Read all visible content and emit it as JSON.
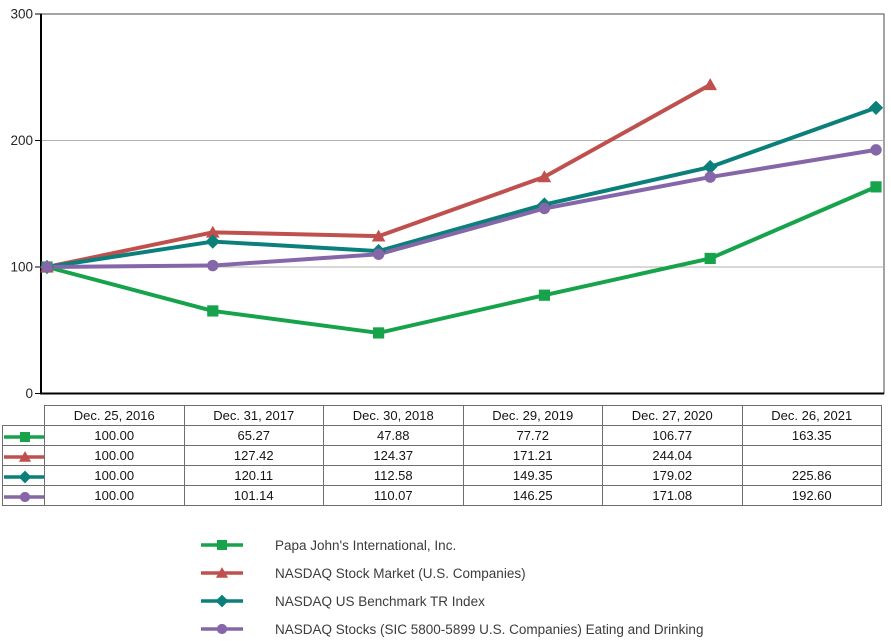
{
  "chart_data": {
    "type": "line",
    "title": "",
    "xlabel": "",
    "ylabel": "",
    "ylim": [
      0,
      300
    ],
    "yticks": [
      0,
      100,
      200,
      300
    ],
    "grid": "horizontal",
    "legend_position": "bottom",
    "x_categories": [
      "Dec. 25, 2016",
      "Dec. 31, 2017",
      "Dec. 30, 2018",
      "Dec. 29, 2019",
      "Dec. 27, 2020",
      "Dec. 26, 2021"
    ],
    "series": [
      {
        "id": "papa-johns",
        "name": "Papa John's International, Inc.",
        "color": "#17A34C",
        "marker": "square",
        "values": [
          100.0,
          65.27,
          47.88,
          77.72,
          106.77,
          163.35
        ]
      },
      {
        "id": "nasdaq-stock-market",
        "name": "NASDAQ Stock Market (U.S. Companies)",
        "color": "#C0504D",
        "marker": "triangle",
        "values": [
          100.0,
          127.42,
          124.37,
          171.21,
          244.04,
          null
        ]
      },
      {
        "id": "nasdaq-benchmark",
        "name": "NASDAQ US Benchmark TR Index",
        "color": "#0B7F79",
        "marker": "diamond",
        "values": [
          100.0,
          120.11,
          112.58,
          149.35,
          179.02,
          225.86
        ]
      },
      {
        "id": "nasdaq-eating-drinking",
        "name": "NASDAQ Stocks (SIC 5800-5899 U.S. Companies) Eating and Drinking",
        "color": "#8566A8",
        "marker": "circle",
        "values": [
          100.0,
          101.14,
          110.07,
          146.25,
          171.08,
          192.6
        ]
      }
    ]
  },
  "table": {
    "headers": [
      "Dec. 25, 2016",
      "Dec. 31, 2017",
      "Dec. 30, 2018",
      "Dec. 29, 2019",
      "Dec. 27, 2020",
      "Dec. 26, 2021"
    ],
    "rows": [
      [
        "100.00",
        "65.27",
        "47.88",
        "77.72",
        "106.77",
        "163.35"
      ],
      [
        "100.00",
        "127.42",
        "124.37",
        "171.21",
        "244.04",
        ""
      ],
      [
        "100.00",
        "120.11",
        "112.58",
        "149.35",
        "179.02",
        "225.86"
      ],
      [
        "100.00",
        "101.14",
        "110.07",
        "146.25",
        "171.08",
        "192.60"
      ]
    ]
  }
}
